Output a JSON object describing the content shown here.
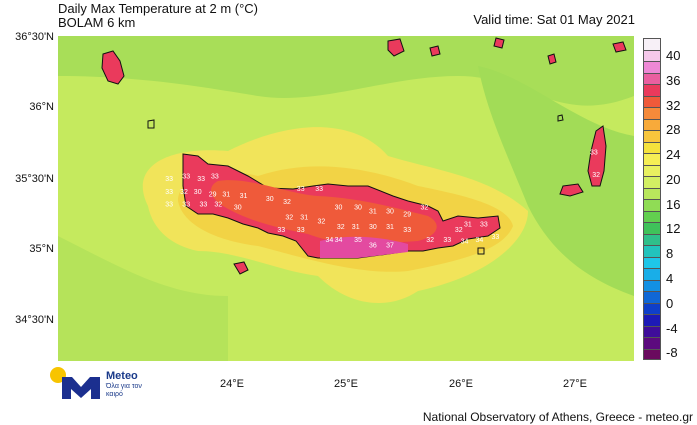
{
  "title": {
    "line1": "Daily Max Temperature at 2 m (°C)",
    "line2": "BOLAM 6 km"
  },
  "valid_time": "Valid time: Sat 01 May 2021",
  "map": {
    "lat_labels": [
      "36°30'N",
      "36°N",
      "35°30'N",
      "35°N",
      "34°30'N"
    ],
    "lon_labels": [
      "24°E",
      "25°E",
      "26°E",
      "27°E"
    ],
    "temp_labels": [
      {
        "v": "33",
        "c": [
          23.47,
          35.47
        ]
      },
      {
        "v": "33",
        "c": [
          23.62,
          35.49
        ]
      },
      {
        "v": "33",
        "c": [
          23.75,
          35.47
        ]
      },
      {
        "v": "33",
        "c": [
          23.87,
          35.49
        ]
      },
      {
        "v": "33",
        "c": [
          23.47,
          35.38
        ]
      },
      {
        "v": "32",
        "c": [
          23.6,
          35.38
        ]
      },
      {
        "v": "30",
        "c": [
          23.72,
          35.38
        ]
      },
      {
        "v": "29",
        "c": [
          23.85,
          35.36
        ]
      },
      {
        "v": "31",
        "c": [
          23.97,
          35.36
        ]
      },
      {
        "v": "31",
        "c": [
          24.12,
          35.35
        ]
      },
      {
        "v": "33",
        "c": [
          23.47,
          35.29
        ]
      },
      {
        "v": "33",
        "c": [
          23.62,
          35.29
        ]
      },
      {
        "v": "33",
        "c": [
          23.77,
          35.29
        ]
      },
      {
        "v": "32",
        "c": [
          23.9,
          35.29
        ]
      },
      {
        "v": "30",
        "c": [
          24.07,
          35.27
        ]
      },
      {
        "v": "30",
        "c": [
          24.35,
          35.33
        ]
      },
      {
        "v": "32",
        "c": [
          24.5,
          35.31
        ]
      },
      {
        "v": "33",
        "c": [
          24.62,
          35.4
        ]
      },
      {
        "v": "33",
        "c": [
          24.78,
          35.4
        ]
      },
      {
        "v": "32",
        "c": [
          24.52,
          35.2
        ]
      },
      {
        "v": "31",
        "c": [
          24.65,
          35.2
        ]
      },
      {
        "v": "32",
        "c": [
          24.8,
          35.17
        ]
      },
      {
        "v": "30",
        "c": [
          24.95,
          35.27
        ]
      },
      {
        "v": "30",
        "c": [
          25.12,
          35.27
        ]
      },
      {
        "v": "31",
        "c": [
          25.25,
          35.24
        ]
      },
      {
        "v": "30",
        "c": [
          25.4,
          35.24
        ]
      },
      {
        "v": "29",
        "c": [
          25.55,
          35.22
        ]
      },
      {
        "v": "32",
        "c": [
          25.7,
          35.27
        ]
      },
      {
        "v": "33",
        "c": [
          24.45,
          35.11
        ]
      },
      {
        "v": "33",
        "c": [
          24.62,
          35.11
        ]
      },
      {
        "v": "32",
        "c": [
          24.97,
          35.13
        ]
      },
      {
        "v": "31",
        "c": [
          25.1,
          35.13
        ]
      },
      {
        "v": "30",
        "c": [
          25.25,
          35.13
        ]
      },
      {
        "v": "31",
        "c": [
          25.4,
          35.13
        ]
      },
      {
        "v": "33",
        "c": [
          25.55,
          35.11
        ]
      },
      {
        "v": "34",
        "c": [
          24.95,
          35.04
        ]
      },
      {
        "v": "35",
        "c": [
          25.12,
          35.04
        ]
      },
      {
        "v": "36",
        "c": [
          25.25,
          35.0
        ]
      },
      {
        "v": "37",
        "c": [
          25.4,
          35.0
        ]
      },
      {
        "v": "32",
        "c": [
          25.75,
          35.04
        ]
      },
      {
        "v": "33",
        "c": [
          25.9,
          35.04
        ]
      },
      {
        "v": "32",
        "c": [
          26.0,
          35.11
        ]
      },
      {
        "v": "31",
        "c": [
          26.08,
          35.15
        ]
      },
      {
        "v": "33",
        "c": [
          26.22,
          35.15
        ]
      },
      {
        "v": "34",
        "c": [
          26.05,
          35.03
        ]
      },
      {
        "v": "34",
        "c": [
          26.18,
          35.04
        ]
      },
      {
        "v": "33",
        "c": [
          26.32,
          35.06
        ]
      },
      {
        "v": "34",
        "c": [
          24.87,
          35.04
        ]
      },
      {
        "v": "33",
        "c": [
          27.18,
          35.66
        ]
      },
      {
        "v": "32",
        "c": [
          27.2,
          35.5
        ]
      }
    ]
  },
  "legend": {
    "labels": [
      "40",
      "36",
      "32",
      "28",
      "24",
      "20",
      "16",
      "12",
      "8",
      "4",
      "0",
      "-4",
      "-8"
    ],
    "colors": [
      "#f7f0f7",
      "#f5c8ea",
      "#ee88d5",
      "#ea5fa0",
      "#ea3a5c",
      "#ef5a3a",
      "#f58a3a",
      "#f8aa3a",
      "#f8c63c",
      "#f5e23c",
      "#f5ee55",
      "#e8f060",
      "#d3ef63",
      "#b9e75c",
      "#90dc55",
      "#62cf4f",
      "#3fc25a",
      "#2fbf8a",
      "#22c3bc",
      "#1ec6e8",
      "#19aee8",
      "#1390e3",
      "#1067d6",
      "#0f3fc9",
      "#1d1ab6",
      "#3f0d9a",
      "#5c0a7e",
      "#6a0a5e"
    ]
  },
  "logo": {
    "name": "Meteo",
    "tagline": "Όλα για τον καιρό"
  },
  "footer": "National Observatory of Athens, Greece - meteo.gr"
}
